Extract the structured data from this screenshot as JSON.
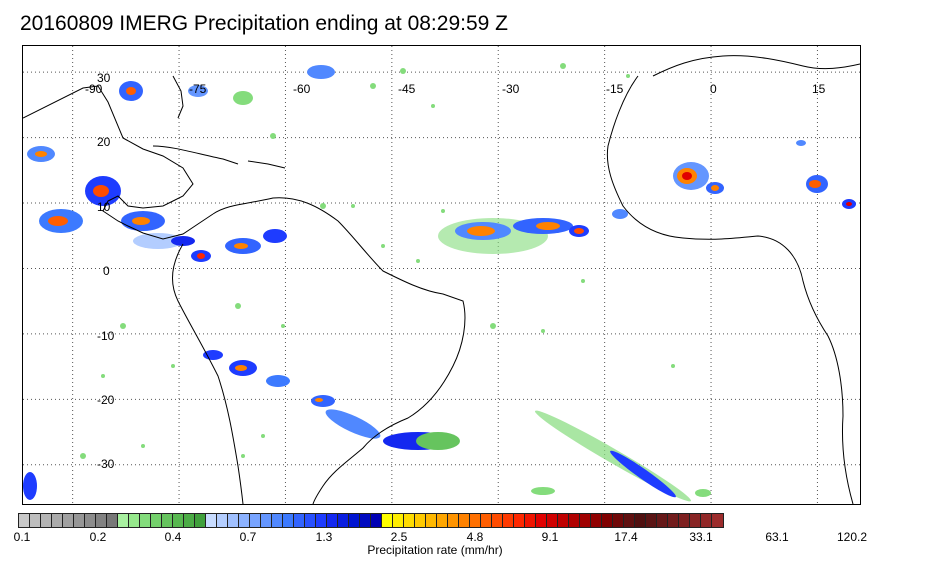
{
  "title": "20160809 IMERG Precipitation ending at 08:29:59 Z",
  "map": {
    "lon_labels": [
      "-90",
      "-75",
      "-60",
      "-45",
      "-30",
      "-15",
      "0",
      "15"
    ],
    "lat_labels": [
      "30",
      "20",
      "10",
      "0",
      "-10",
      "-20",
      "-30"
    ],
    "grid": "dotted",
    "lon_range": [
      -97,
      21
    ],
    "lat_range": [
      -36,
      34
    ]
  },
  "colorbar": {
    "caption": "Precipitation rate (mm/hr)",
    "tick_labels": [
      "0.1",
      "0.2",
      "0.4",
      "0.7",
      "1.3",
      "2.5",
      "4.8",
      "9.1",
      "17.4",
      "33.1",
      "63.1",
      "120.2"
    ],
    "colors": [
      "#c8c8c8",
      "#bebebe",
      "#b4b4b4",
      "#aaaaaa",
      "#a0a0a0",
      "#969696",
      "#8c8c8c",
      "#828282",
      "#787878",
      "#a8f0a0",
      "#96e88c",
      "#84dc7c",
      "#74d06c",
      "#66c45e",
      "#58b850",
      "#4cac46",
      "#40a03c",
      "#c8dcff",
      "#b4ceff",
      "#a0c0ff",
      "#8cb2ff",
      "#78a4ff",
      "#6496ff",
      "#5088ff",
      "#3c7aff",
      "#3264ff",
      "#2850ff",
      "#1e3cff",
      "#1428f0",
      "#0a1ee0",
      "#0014d0",
      "#000ac0",
      "#0000b4",
      "#ffff00",
      "#ffee00",
      "#ffdc00",
      "#ffca00",
      "#ffb800",
      "#ffa600",
      "#ff9400",
      "#ff8200",
      "#ff7000",
      "#ff5e00",
      "#ff4c00",
      "#ff3a00",
      "#ff2800",
      "#f01400",
      "#e00000",
      "#d00000",
      "#c00000",
      "#b00000",
      "#a00000",
      "#900000",
      "#800000",
      "#700808",
      "#601010",
      "#501010",
      "#5a1414",
      "#661818",
      "#721c1c",
      "#7e2020",
      "#882424",
      "#922828",
      "#9c2c2c"
    ],
    "accent_colors": {
      "light_green": "#90e090",
      "blue": "#1e3cff",
      "yellow": "#ffff00",
      "orange": "#ff8200",
      "red": "#e00000",
      "dark_red": "#700808"
    }
  }
}
